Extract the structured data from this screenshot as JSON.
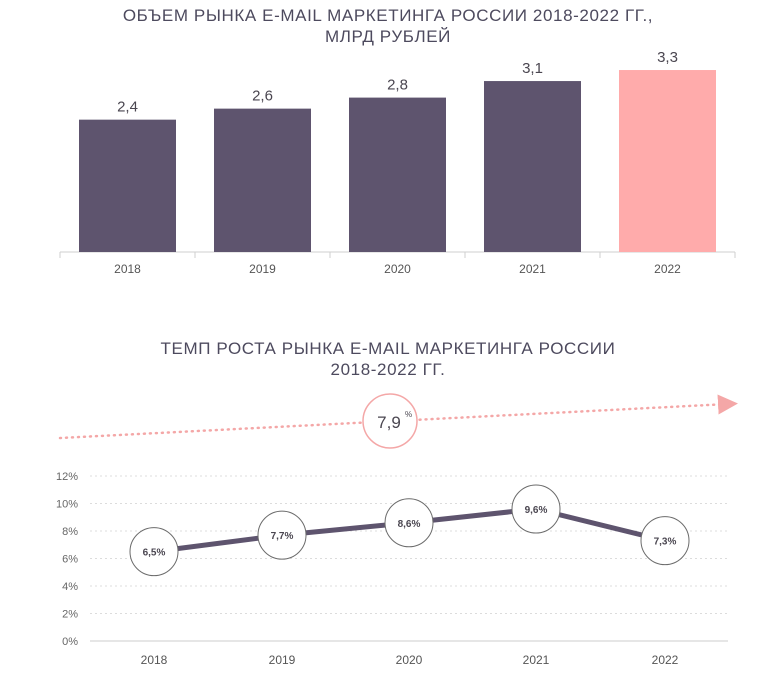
{
  "chart_data": [
    {
      "type": "bar",
      "title": "ОБЪЕМ РЫНКА E-MAIL МАРКЕТИНГА РОССИИ 2018-2022 ГГ.,",
      "subtitle": "МЛРД РУБЛЕЙ",
      "categories": [
        "2018",
        "2019",
        "2020",
        "2021",
        "2022"
      ],
      "values": [
        2.4,
        2.6,
        2.8,
        3.1,
        3.3
      ],
      "value_labels": [
        "2,4",
        "2,6",
        "2,8",
        "3,1",
        "3,3"
      ],
      "bar_colors": [
        "#5e546e",
        "#5e546e",
        "#5e546e",
        "#5e546e",
        "#ffabab"
      ],
      "ylim": [
        0,
        3.5
      ],
      "grid": false
    },
    {
      "type": "line",
      "title": "ТЕМП РОСТА РЫНКА E-MAIL МАРКЕТИНГА РОССИИ",
      "subtitle": "2018-2022 ГГ.",
      "categories": [
        "2018",
        "2019",
        "2020",
        "2021",
        "2022"
      ],
      "values": [
        6.5,
        7.7,
        8.6,
        9.6,
        7.3
      ],
      "value_labels": [
        "6,5%",
        "7,7%",
        "8,6%",
        "9,6%",
        "7,3%"
      ],
      "y_ticks": [
        "0%",
        "2%",
        "4%",
        "6%",
        "8%",
        "10%",
        "12%"
      ],
      "ylim": [
        0,
        12
      ],
      "grid": true,
      "line_color": "#5e546e",
      "average": {
        "value": "7,9",
        "unit": "%",
        "color": "#f4a7a7"
      }
    }
  ]
}
